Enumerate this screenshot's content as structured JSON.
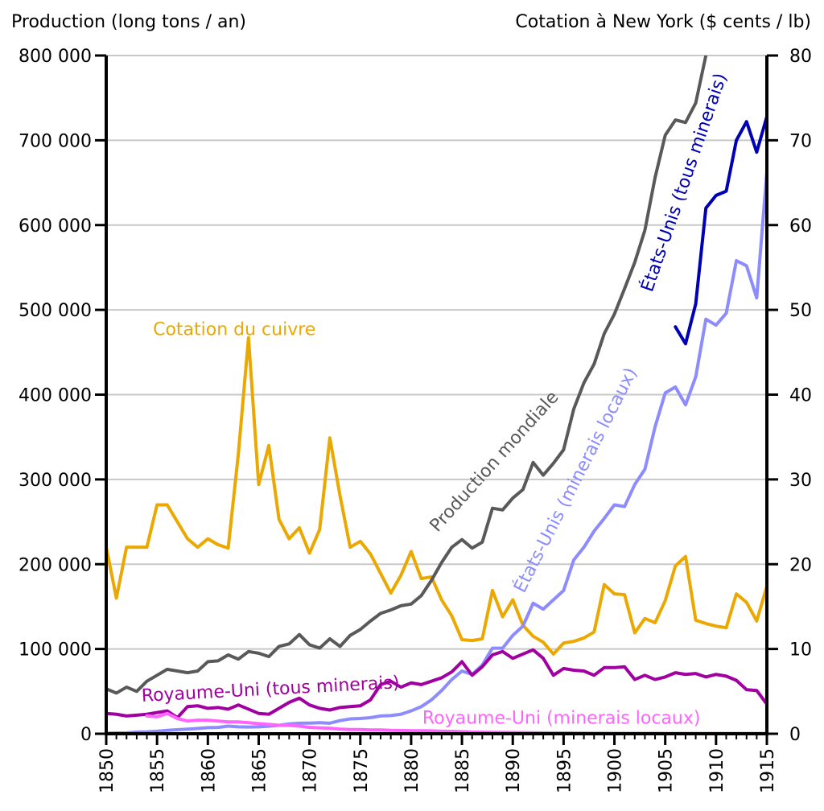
{
  "chart_data": {
    "type": "line",
    "left_axis_title": "Production (long tons / an)",
    "right_axis_title": "Cotation à New York ($ cents / lb)",
    "x_ticks": [
      "1850",
      "1855",
      "1860",
      "1865",
      "1870",
      "1875",
      "1880",
      "1885",
      "1890",
      "1895",
      "1900",
      "1905",
      "1910",
      "1915"
    ],
    "left_ticks": [
      "0",
      "100 000",
      "200 000",
      "300 000",
      "400 000",
      "500 000",
      "600 000",
      "700 000",
      "800 000"
    ],
    "right_ticks": [
      "0",
      "10",
      "20",
      "30",
      "40",
      "50",
      "60",
      "70",
      "80"
    ],
    "xlim": [
      1850,
      1915
    ],
    "ylim_left": [
      0,
      800000
    ],
    "ylim_right": [
      0,
      80
    ],
    "grid": true,
    "series": [
      {
        "name": "Cotation du cuivre",
        "axis": "right",
        "color": "#EBA800",
        "x": [
          1850,
          1851,
          1852,
          1853,
          1854,
          1855,
          1856,
          1857,
          1858,
          1859,
          1860,
          1861,
          1862,
          1863,
          1864,
          1865,
          1866,
          1867,
          1868,
          1869,
          1870,
          1871,
          1872,
          1873,
          1874,
          1875,
          1876,
          1877,
          1878,
          1879,
          1880,
          1881,
          1882,
          1883,
          1884,
          1885,
          1886,
          1887,
          1888,
          1889,
          1890,
          1891,
          1892,
          1893,
          1894,
          1895,
          1896,
          1897,
          1898,
          1899,
          1900,
          1901,
          1902,
          1903,
          1904,
          1905,
          1906,
          1907,
          1908,
          1909,
          1910,
          1911,
          1912,
          1913,
          1914,
          1915
        ],
        "values": [
          22,
          16,
          22,
          22,
          22,
          27,
          27,
          25,
          23,
          22,
          23,
          22.3,
          21.9,
          33,
          46.7,
          29.4,
          34,
          25.3,
          23,
          24.3,
          21.3,
          24.1,
          34.9,
          28.1,
          22,
          22.7,
          21.2,
          18.9,
          16.6,
          18.7,
          21.5,
          18.3,
          18.5,
          15.8,
          13.9,
          11.1,
          11,
          11.2,
          16.9,
          13.8,
          15.8,
          12.8,
          11.5,
          10.8,
          9.4,
          10.7,
          10.9,
          11.3,
          12,
          17.6,
          16.5,
          16.4,
          11.9,
          13.6,
          13.1,
          15.7,
          19.8,
          20.9,
          13.4,
          13,
          12.7,
          12.5,
          16.5,
          15.5,
          13.3,
          17.4
        ],
        "label_text": "Cotation du cuivre"
      },
      {
        "name": "Production mondiale",
        "axis": "left",
        "color": "#595959",
        "x": [
          1850,
          1851,
          1852,
          1853,
          1854,
          1855,
          1856,
          1857,
          1858,
          1859,
          1860,
          1861,
          1862,
          1863,
          1864,
          1865,
          1866,
          1867,
          1868,
          1869,
          1870,
          1871,
          1872,
          1873,
          1874,
          1875,
          1876,
          1877,
          1878,
          1879,
          1880,
          1881,
          1882,
          1883,
          1884,
          1885,
          1886,
          1887,
          1888,
          1889,
          1890,
          1891,
          1892,
          1893,
          1894,
          1895,
          1896,
          1897,
          1898,
          1899,
          1900,
          1901,
          1902,
          1903,
          1904,
          1905,
          1906,
          1907,
          1908,
          1909
        ],
        "values": [
          53000,
          48000,
          55000,
          50000,
          62000,
          69000,
          76000,
          74000,
          72000,
          74000,
          85000,
          86000,
          93000,
          88000,
          97000,
          95000,
          91000,
          103000,
          106000,
          117000,
          105000,
          101000,
          112000,
          103000,
          116000,
          123000,
          133000,
          142000,
          146000,
          151000,
          153000,
          163000,
          181000,
          202000,
          220000,
          229000,
          219000,
          226000,
          266000,
          264000,
          278000,
          288000,
          320000,
          305000,
          319000,
          335000,
          383000,
          414000,
          436000,
          472000,
          495000,
          525000,
          556000,
          594000,
          656000,
          706000,
          724000,
          721000,
          744000,
          800000
        ],
        "label_text": "Production mondiale"
      },
      {
        "name": "États-Unis (minerais locaux)",
        "axis": "left",
        "color": "#8C8CFF",
        "x": [
          1850,
          1851,
          1852,
          1853,
          1854,
          1855,
          1856,
          1857,
          1858,
          1859,
          1860,
          1861,
          1862,
          1863,
          1864,
          1865,
          1866,
          1867,
          1868,
          1869,
          1870,
          1871,
          1872,
          1873,
          1874,
          1875,
          1876,
          1877,
          1878,
          1879,
          1880,
          1881,
          1882,
          1883,
          1884,
          1885,
          1886,
          1887,
          1888,
          1889,
          1890,
          1891,
          1892,
          1893,
          1894,
          1895,
          1896,
          1897,
          1898,
          1899,
          1900,
          1901,
          1902,
          1903,
          1904,
          1905,
          1906,
          1907,
          1908,
          1909,
          1910,
          1911,
          1912,
          1913,
          1914,
          1915
        ],
        "values": [
          650,
          900,
          1100,
          2000,
          2250,
          3000,
          4000,
          4800,
          5500,
          6300,
          7200,
          7500,
          9000,
          8200,
          8000,
          8200,
          8900,
          10000,
          11600,
          12500,
          12600,
          13000,
          12500,
          15500,
          17500,
          18000,
          19000,
          21000,
          21500,
          23000,
          27000,
          32000,
          40000,
          51000,
          64000,
          74000,
          70000,
          81000,
          101000,
          101000,
          116000,
          127000,
          154000,
          147000,
          158000,
          169000,
          205000,
          220000,
          239000,
          254000,
          270000,
          268000,
          294000,
          312000,
          362000,
          402000,
          409000,
          388000,
          421000,
          489000,
          482000,
          496000,
          558000,
          552000,
          514000,
          663000
        ],
        "label_text": "États-Unis (minerais locaux)"
      },
      {
        "name": "États-Unis (tous minerais)",
        "axis": "left",
        "color": "#0000B4",
        "x": [
          1906,
          1907,
          1908,
          1909,
          1910,
          1911,
          1912,
          1913,
          1914,
          1915
        ],
        "values": [
          480000,
          460000,
          507000,
          620000,
          635000,
          640000,
          700000,
          722000,
          686000,
          728000
        ],
        "label_text": "États-Unis (tous minerais)"
      },
      {
        "name": "Royaume-Uni (tous minerais)",
        "axis": "left",
        "color": "#A000A0",
        "x": [
          1850,
          1851,
          1852,
          1853,
          1854,
          1855,
          1856,
          1857,
          1858,
          1859,
          1860,
          1861,
          1862,
          1863,
          1864,
          1865,
          1866,
          1867,
          1868,
          1869,
          1870,
          1871,
          1872,
          1873,
          1874,
          1875,
          1876,
          1877,
          1878,
          1879,
          1880,
          1881,
          1882,
          1883,
          1884,
          1885,
          1886,
          1887,
          1888,
          1889,
          1890,
          1891,
          1892,
          1893,
          1894,
          1895,
          1896,
          1897,
          1898,
          1899,
          1900,
          1901,
          1902,
          1903,
          1904,
          1905,
          1906,
          1907,
          1908,
          1909,
          1910,
          1911,
          1912,
          1913,
          1914,
          1915
        ],
        "values": [
          24000,
          23000,
          21000,
          22000,
          23000,
          25000,
          27000,
          19000,
          32000,
          33000,
          30000,
          31000,
          29000,
          34000,
          29000,
          24000,
          23000,
          30000,
          37000,
          42000,
          34000,
          30000,
          28000,
          31000,
          32000,
          33000,
          40000,
          58000,
          62000,
          55000,
          60000,
          58000,
          62000,
          66000,
          73000,
          85000,
          69000,
          79000,
          93000,
          97000,
          89000,
          94000,
          99000,
          89000,
          69000,
          77000,
          75000,
          74000,
          69000,
          78000,
          78000,
          79000,
          64000,
          69000,
          64000,
          67000,
          72000,
          70000,
          71000,
          67000,
          70000,
          68000,
          63000,
          52000,
          51000,
          35000
        ],
        "label_text": "Royaume-Uni (tous minerais)"
      },
      {
        "name": "Royaume-Uni (minerais locaux)",
        "axis": "left",
        "color": "#FF64FF",
        "x": [
          1850,
          1851,
          1852,
          1853,
          1854,
          1855,
          1856,
          1857,
          1858,
          1859,
          1860,
          1861,
          1862,
          1863,
          1864,
          1865,
          1866,
          1867,
          1868,
          1869,
          1870,
          1871,
          1872,
          1873,
          1874,
          1875,
          1876,
          1877,
          1878,
          1879,
          1880,
          1881,
          1882,
          1883,
          1884,
          1885,
          1886,
          1887,
          1888,
          1889,
          1890,
          1891,
          1892,
          1893,
          1894,
          1895,
          1896,
          1897,
          1898,
          1899,
          1900,
          1901,
          1902,
          1903,
          1904,
          1905,
          1906,
          1907,
          1908,
          1909,
          1910,
          1911,
          1912,
          1913,
          1914,
          1915
        ],
        "values": [
          null,
          null,
          null,
          null,
          21000,
          20000,
          24000,
          18000,
          15000,
          16000,
          16000,
          15000,
          14000,
          14000,
          13000,
          12000,
          11000,
          10000,
          10000,
          9000,
          7500,
          7000,
          6500,
          5500,
          5000,
          5000,
          4500,
          4500,
          4000,
          3800,
          3600,
          3500,
          3400,
          3000,
          2800,
          2500,
          2000,
          1800,
          1600,
          1500,
          1400,
          1300,
          1200,
          1100,
          1000,
          900,
          800,
          700,
          600,
          600,
          500,
          500,
          500,
          450,
          450,
          400,
          400,
          400,
          400,
          400,
          400,
          350,
          350,
          350,
          300,
          300
        ],
        "label_text": "Royaume-Uni (minerais locaux)"
      }
    ]
  }
}
